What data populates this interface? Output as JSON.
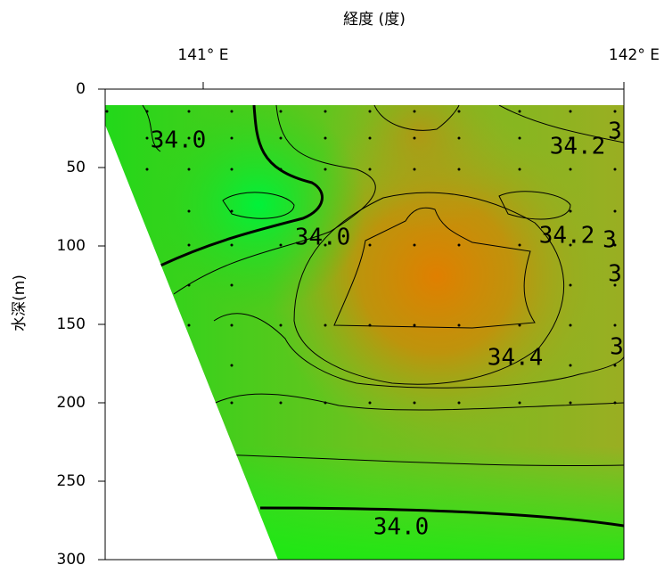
{
  "chart_data": {
    "type": "contour",
    "xlabel": "経度 (度)",
    "ylabel": "水深(m)",
    "xlim": [
      140.767,
      142
    ],
    "xticks": [
      {
        "value": 141,
        "label": "141° E"
      },
      {
        "value": 142,
        "label": "142° E"
      }
    ],
    "ylim": [
      0,
      300
    ],
    "yticks": [
      0,
      50,
      100,
      150,
      200,
      250,
      300
    ],
    "annotations": [
      "34.0",
      "34.2",
      "34.0",
      "34.2",
      "34.4",
      "34.0",
      "3",
      "3",
      "3",
      "3"
    ]
  }
}
